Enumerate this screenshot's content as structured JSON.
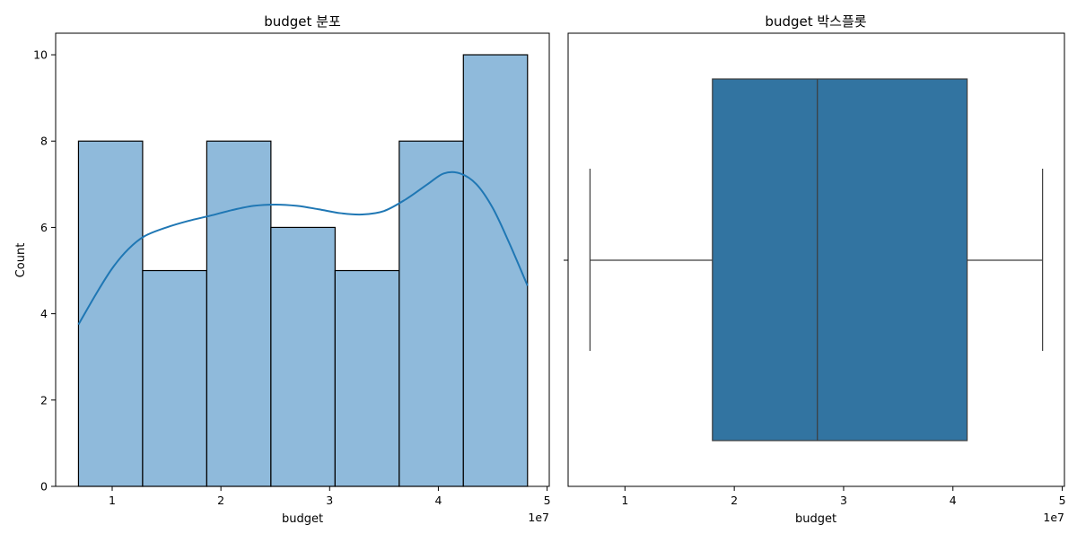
{
  "chart_data": [
    {
      "type": "histogram",
      "title": "budget 분포",
      "xlabel": "budget",
      "ylabel": "Count",
      "x_offset_label": "1e7",
      "x_scale_multiplier": 10000000,
      "xlim": [
        0.48,
        5.02
      ],
      "ylim": [
        0,
        10.5
      ],
      "xticks": [
        1,
        2,
        3,
        4,
        5
      ],
      "yticks": [
        0,
        2,
        4,
        6,
        8,
        10
      ],
      "bins": [
        {
          "x0": 0.69,
          "x1": 1.28,
          "count": 8
        },
        {
          "x0": 1.28,
          "x1": 1.87,
          "count": 5
        },
        {
          "x0": 1.87,
          "x1": 2.46,
          "count": 8
        },
        {
          "x0": 2.46,
          "x1": 3.05,
          "count": 6
        },
        {
          "x0": 3.05,
          "x1": 3.64,
          "count": 5
        },
        {
          "x0": 3.64,
          "x1": 4.23,
          "count": 8
        },
        {
          "x0": 4.23,
          "x1": 4.82,
          "count": 10
        }
      ],
      "kde": {
        "x": [
          0.69,
          0.85,
          1.0,
          1.15,
          1.3,
          1.5,
          1.7,
          1.9,
          2.1,
          2.3,
          2.5,
          2.7,
          2.9,
          3.1,
          3.3,
          3.5,
          3.7,
          3.9,
          4.05,
          4.2,
          4.35,
          4.5,
          4.65,
          4.82
        ],
        "y": [
          3.75,
          4.45,
          5.05,
          5.5,
          5.8,
          6.0,
          6.15,
          6.27,
          6.4,
          6.5,
          6.53,
          6.5,
          6.42,
          6.33,
          6.3,
          6.38,
          6.65,
          7.0,
          7.25,
          7.25,
          7.0,
          6.45,
          5.65,
          4.65
        ]
      },
      "colors": {
        "bar_fill": "#8fbadb",
        "bar_edge": "#000000",
        "kde_line": "#1f77b4"
      }
    },
    {
      "type": "boxplot",
      "title": "budget 박스플롯",
      "xlabel": "budget",
      "x_offset_label": "1e7",
      "x_scale_multiplier": 10000000,
      "xlim": [
        0.48,
        5.02
      ],
      "xticks": [
        1,
        2,
        3,
        4,
        5
      ],
      "box": {
        "whisker_low": 0.68,
        "q1": 1.8,
        "median": 2.76,
        "q3": 4.13,
        "whisker_high": 4.82
      },
      "colors": {
        "box_fill": "#3274a1",
        "line": "#3d3d3d"
      }
    }
  ]
}
